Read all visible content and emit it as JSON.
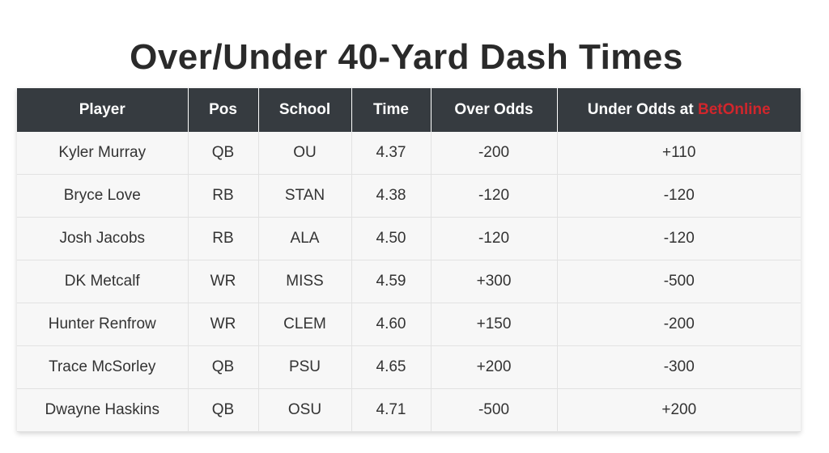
{
  "title": "Over/Under 40-Yard Dash Times",
  "colors": {
    "header_bg": "#363b40",
    "header_text": "#ffffff",
    "brand_red": "#d1262c",
    "row_bg": "#f7f7f7"
  },
  "table": {
    "headers": {
      "player": "Player",
      "pos": "Pos",
      "school": "School",
      "time": "Time",
      "over_odds": "Over Odds",
      "under_odds_prefix": "Under Odds at ",
      "under_odds_brand": "BetOnline"
    },
    "rows": [
      {
        "player": "Kyler Murray",
        "pos": "QB",
        "school": "OU",
        "time": "4.37",
        "over": "-200",
        "under": "+110"
      },
      {
        "player": "Bryce Love",
        "pos": "RB",
        "school": "STAN",
        "time": "4.38",
        "over": "-120",
        "under": "-120"
      },
      {
        "player": "Josh Jacobs",
        "pos": "RB",
        "school": "ALA",
        "time": "4.50",
        "over": "-120",
        "under": "-120"
      },
      {
        "player": "DK Metcalf",
        "pos": "WR",
        "school": "MISS",
        "time": "4.59",
        "over": "+300",
        "under": "-500"
      },
      {
        "player": "Hunter Renfrow",
        "pos": "WR",
        "school": "CLEM",
        "time": "4.60",
        "over": "+150",
        "under": "-200"
      },
      {
        "player": "Trace McSorley",
        "pos": "QB",
        "school": "PSU",
        "time": "4.65",
        "over": "+200",
        "under": "-300"
      },
      {
        "player": "Dwayne Haskins",
        "pos": "QB",
        "school": "OSU",
        "time": "4.71",
        "over": "-500",
        "under": "+200"
      }
    ]
  }
}
